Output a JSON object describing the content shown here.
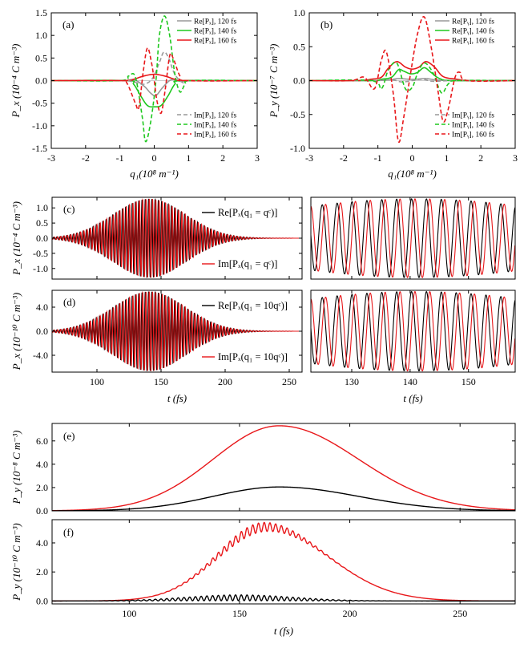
{
  "chart_data": [
    {
      "id": "a",
      "type": "line",
      "panel_label": "(a)",
      "xlabel": "q₁(10⁸ m⁻¹)",
      "ylabel": "P_x (10⁻⁴ C m⁻³)",
      "xlim": [
        -3,
        3
      ],
      "ylim": [
        -1.5,
        1.5
      ],
      "xticks": [
        "-3",
        "-2",
        "-1",
        "0",
        "1",
        "2",
        "3"
      ],
      "yticks": [
        "-1.5",
        "-1.0",
        "-0.5",
        "0.0",
        "0.5",
        "1.0",
        "1.5"
      ],
      "legend_top": [
        "Re[Pₓ], 120 fs",
        "Re[Pₓ], 140 fs",
        "Re[Pₓ], 160 fs"
      ],
      "legend_bottom": [
        "Im[Pₓ], 120 fs",
        "Im[Pₓ], 140 fs",
        "Im[Pₓ], 160 fs"
      ],
      "series": [
        {
          "name": "Re[Px], 120 fs",
          "color": "#999999",
          "dash": false,
          "points": [
            [
              -3,
              0
            ],
            [
              -1,
              0
            ],
            [
              -0.6,
              0.02
            ],
            [
              -0.3,
              -0.12
            ],
            [
              -0.1,
              -0.28
            ],
            [
              0.05,
              -0.33
            ],
            [
              0.25,
              -0.15
            ],
            [
              0.5,
              0.02
            ],
            [
              0.8,
              -0.02
            ],
            [
              1.1,
              0
            ],
            [
              3,
              0
            ]
          ]
        },
        {
          "name": "Re[Px], 140 fs",
          "color": "#1ec81e",
          "dash": false,
          "points": [
            [
              -3,
              0
            ],
            [
              -0.8,
              0
            ],
            [
              -0.6,
              -0.08
            ],
            [
              -0.4,
              -0.33
            ],
            [
              -0.2,
              -0.55
            ],
            [
              0,
              -0.58
            ],
            [
              0.2,
              -0.55
            ],
            [
              0.4,
              -0.34
            ],
            [
              0.6,
              -0.08
            ],
            [
              0.8,
              0
            ],
            [
              3,
              0
            ]
          ]
        },
        {
          "name": "Re[Px], 160 fs",
          "color": "#e8171a",
          "dash": false,
          "points": [
            [
              -3,
              0
            ],
            [
              -0.9,
              0
            ],
            [
              -0.6,
              0.03
            ],
            [
              -0.4,
              0.08
            ],
            [
              -0.2,
              0.12
            ],
            [
              0,
              0.14
            ],
            [
              0.2,
              0.12
            ],
            [
              0.4,
              0.08
            ],
            [
              0.6,
              0.03
            ],
            [
              0.9,
              0
            ],
            [
              3,
              0
            ]
          ]
        },
        {
          "name": "Im[Px], 120 fs",
          "color": "#999999",
          "dash": true,
          "points": [
            [
              -3,
              0
            ],
            [
              -1,
              0
            ],
            [
              -0.6,
              -0.03
            ],
            [
              -0.3,
              -0.08
            ],
            [
              -0.05,
              0.05
            ],
            [
              0.15,
              0.4
            ],
            [
              0.28,
              0.63
            ],
            [
              0.42,
              0.5
            ],
            [
              0.6,
              0.14
            ],
            [
              0.85,
              -0.05
            ],
            [
              1.1,
              0
            ],
            [
              3,
              0
            ]
          ]
        },
        {
          "name": "Im[Px], 140 fs",
          "color": "#1ec81e",
          "dash": true,
          "points": [
            [
              -3,
              0
            ],
            [
              -1,
              0
            ],
            [
              -0.75,
              0.1
            ],
            [
              -0.55,
              0.08
            ],
            [
              -0.35,
              -0.8
            ],
            [
              -0.25,
              -1.35
            ],
            [
              -0.1,
              -0.9
            ],
            [
              0.05,
              0
            ],
            [
              0.15,
              1.0
            ],
            [
              0.3,
              1.43
            ],
            [
              0.45,
              1.0
            ],
            [
              0.6,
              0.15
            ],
            [
              0.75,
              -0.25
            ],
            [
              0.9,
              -0.08
            ],
            [
              1.1,
              0
            ],
            [
              3,
              0
            ]
          ]
        },
        {
          "name": "Im[Px], 160 fs",
          "color": "#e8171a",
          "dash": true,
          "points": [
            [
              -3,
              0
            ],
            [
              -1,
              0
            ],
            [
              -0.8,
              -0.05
            ],
            [
              -0.55,
              -0.5
            ],
            [
              -0.45,
              -0.6
            ],
            [
              -0.32,
              0.2
            ],
            [
              -0.2,
              0.72
            ],
            [
              -0.08,
              0.4
            ],
            [
              0,
              0
            ],
            [
              0.08,
              -0.45
            ],
            [
              0.2,
              -0.72
            ],
            [
              0.32,
              -0.2
            ],
            [
              0.45,
              0.55
            ],
            [
              0.55,
              0.5
            ],
            [
              0.75,
              0.1
            ],
            [
              0.95,
              0
            ],
            [
              3,
              0
            ]
          ]
        }
      ]
    },
    {
      "id": "b",
      "type": "line",
      "panel_label": "(b)",
      "xlabel": "q₁(10⁸ m⁻¹)",
      "ylabel": "P_y (10⁻⁷ C m⁻³)",
      "xlim": [
        -3,
        3
      ],
      "ylim": [
        -1.0,
        1.0
      ],
      "xticks": [
        "-3",
        "-2",
        "-1",
        "0",
        "1",
        "2",
        "3"
      ],
      "yticks": [
        "-1.0",
        "-0.5",
        "0.0",
        "0.5",
        "1.0"
      ],
      "legend_top": [
        "Re[Pᵧ], 120 fs",
        "Re[Pᵧ], 140 fs",
        "Re[Pᵧ], 160 fs"
      ],
      "legend_bottom": [
        "Im[Pᵧ], 120 fs",
        "Im[Pᵧ], 140 fs",
        "Im[Pᵧ], 160 fs"
      ],
      "series": [
        {
          "name": "Re[Py], 120 fs",
          "color": "#999999",
          "dash": false,
          "points": [
            [
              -3,
              0
            ],
            [
              -1.2,
              0
            ],
            [
              -0.7,
              0.01
            ],
            [
              -0.4,
              0.03
            ],
            [
              -0.1,
              0.02
            ],
            [
              0.1,
              0.02
            ],
            [
              0.4,
              0.03
            ],
            [
              0.7,
              0.01
            ],
            [
              1.2,
              0
            ],
            [
              3,
              0
            ]
          ]
        },
        {
          "name": "Re[Py], 140 fs",
          "color": "#1ec81e",
          "dash": false,
          "points": [
            [
              -3,
              0
            ],
            [
              -1.2,
              0
            ],
            [
              -0.9,
              0.02
            ],
            [
              -0.6,
              0.05
            ],
            [
              -0.4,
              0.16
            ],
            [
              -0.25,
              0.14
            ],
            [
              -0.05,
              0.1
            ],
            [
              0.15,
              0.12
            ],
            [
              0.35,
              0.19
            ],
            [
              0.55,
              0.12
            ],
            [
              0.8,
              0.03
            ],
            [
              1.2,
              0
            ],
            [
              3,
              0
            ]
          ]
        },
        {
          "name": "Re[Py], 160 fs",
          "color": "#e8171a",
          "dash": false,
          "points": [
            [
              -3,
              0
            ],
            [
              -1.6,
              0
            ],
            [
              -1.2,
              0.02
            ],
            [
              -0.9,
              0.05
            ],
            [
              -0.7,
              0.18
            ],
            [
              -0.45,
              0.28
            ],
            [
              -0.2,
              0.2
            ],
            [
              0,
              0.17
            ],
            [
              0.2,
              0.2
            ],
            [
              0.4,
              0.28
            ],
            [
              0.65,
              0.2
            ],
            [
              0.9,
              0.06
            ],
            [
              1.3,
              0.02
            ],
            [
              1.7,
              0
            ],
            [
              3,
              0
            ]
          ]
        },
        {
          "name": "Im[Py], 120 fs",
          "color": "#999999",
          "dash": true,
          "points": [
            [
              -3,
              0
            ],
            [
              -1.2,
              0
            ],
            [
              -0.6,
              0.01
            ],
            [
              -0.3,
              -0.02
            ],
            [
              0,
              0
            ],
            [
              0.3,
              0.02
            ],
            [
              0.6,
              -0.01
            ],
            [
              1.2,
              0
            ],
            [
              3,
              0
            ]
          ]
        },
        {
          "name": "Im[Py], 140 fs",
          "color": "#1ec81e",
          "dash": true,
          "points": [
            [
              -3,
              0
            ],
            [
              -1.2,
              0
            ],
            [
              -0.9,
              -0.12
            ],
            [
              -0.7,
              0.15
            ],
            [
              -0.45,
              0.26
            ],
            [
              -0.2,
              -0.12
            ],
            [
              0,
              -0.1
            ],
            [
              0.15,
              0.1
            ],
            [
              0.35,
              0.26
            ],
            [
              0.6,
              0.12
            ],
            [
              0.85,
              -0.18
            ],
            [
              1.05,
              -0.05
            ],
            [
              1.3,
              0
            ],
            [
              3,
              0
            ]
          ]
        },
        {
          "name": "Im[Py], 160 fs",
          "color": "#e8171a",
          "dash": true,
          "points": [
            [
              -3,
              0
            ],
            [
              -1.8,
              0
            ],
            [
              -1.4,
              0.05
            ],
            [
              -1.1,
              -0.12
            ],
            [
              -0.9,
              0.3
            ],
            [
              -0.75,
              0.42
            ],
            [
              -0.55,
              -0.2
            ],
            [
              -0.4,
              -0.9
            ],
            [
              -0.25,
              -0.55
            ],
            [
              -0.05,
              0.1
            ],
            [
              0.15,
              0.68
            ],
            [
              0.35,
              0.94
            ],
            [
              0.55,
              0.5
            ],
            [
              0.75,
              -0.15
            ],
            [
              0.9,
              -0.6
            ],
            [
              1.05,
              -0.42
            ],
            [
              1.25,
              0.05
            ],
            [
              1.4,
              0.12
            ],
            [
              1.6,
              0
            ],
            [
              3,
              0
            ]
          ]
        }
      ]
    },
    {
      "id": "c",
      "type": "line",
      "panel_label": "(c)",
      "ylabel": "P_x (10⁻⁴ C m⁻³)",
      "xlim": [
        65,
        260
      ],
      "ylim": [
        -1.35,
        1.35
      ],
      "yticks": [
        "-1.0",
        "-0.5",
        "0.0",
        "0.5",
        "1.0"
      ],
      "legend": [
        "Re[Pₓ(q₁ = qᶜ)]",
        "Im[Pₓ(q₁ = qᶜ)]"
      ],
      "envelope": {
        "amplitude": 1.3,
        "center_fs": 141,
        "sigma_fs": 28,
        "period_fs": 2.55
      },
      "zoom_xlim": [
        123,
        158
      ]
    },
    {
      "id": "d",
      "type": "line",
      "panel_label": "(d)",
      "xlabel": "t (fs)",
      "ylabel": "P_x (10⁻¹⁰ C m⁻³)",
      "xlim": [
        65,
        260
      ],
      "ylim": [
        -6.8,
        6.8
      ],
      "xticks": [
        "100",
        "150",
        "200",
        "250"
      ],
      "yticks": [
        "-4.0",
        "0.0",
        "4.0"
      ],
      "legend": [
        "Re[Pₓ(q₁ = 10qᶜ)]",
        "Im[Pₓ(q₁ = 10qᶜ)]"
      ],
      "envelope": {
        "amplitude": 6.6,
        "center_fs": 141,
        "sigma_fs": 28,
        "period_fs": 2.55
      },
      "zoom_xlim": [
        123,
        158
      ],
      "zoom_xticks": [
        "130",
        "140",
        "150"
      ],
      "zoom_xlabel": "t (fs)"
    },
    {
      "id": "e",
      "type": "line",
      "panel_label": "(e)",
      "ylabel": "P_y (10⁻⁸ C m⁻³)",
      "xlim": [
        65,
        275
      ],
      "ylim": [
        0,
        7.5
      ],
      "yticks": [
        "0.0",
        "2.0",
        "4.0",
        "6.0"
      ],
      "series": [
        {
          "name": "red",
          "color": "#e8171a",
          "peak": 7.3,
          "center_fs": 168,
          "sigma_left": 30,
          "sigma_right": 36
        },
        {
          "name": "black",
          "color": "#000000",
          "peak": 2.05,
          "center_fs": 168,
          "sigma_left": 30,
          "sigma_right": 36
        }
      ]
    },
    {
      "id": "f",
      "type": "line",
      "panel_label": "(f)",
      "xlabel": "t (fs)",
      "ylabel": "P_y (10⁻¹⁰ C m⁻³)",
      "xlim": [
        65,
        275
      ],
      "ylim": [
        -0.2,
        5.6
      ],
      "xticks": [
        "100",
        "150",
        "200",
        "250"
      ],
      "yticks": [
        "0.0",
        "2.0",
        "4.0"
      ],
      "series": [
        {
          "name": "red",
          "color": "#e8171a",
          "peak": 5.1,
          "center_fs": 162,
          "sigma_left": 22,
          "sigma_right": 28,
          "ripple": 0.25
        },
        {
          "name": "black",
          "color": "#000000",
          "peak": 0.05,
          "center_fs": 150,
          "sigma_left": 18,
          "sigma_right": 22,
          "ripple": 0.4
        }
      ]
    }
  ]
}
